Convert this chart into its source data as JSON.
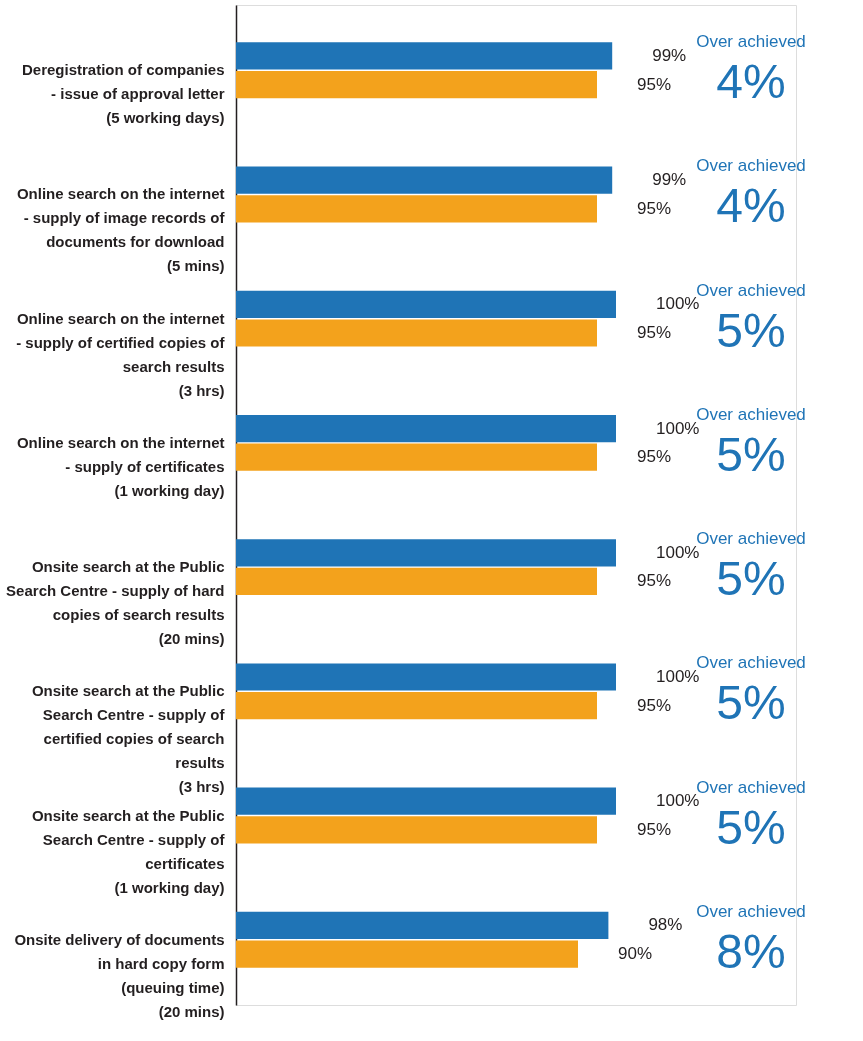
{
  "chart_data": {
    "type": "bar",
    "orientation": "horizontal",
    "categories": [
      "Deregistration of companies\n- issue of approval letter\n(5 working days)",
      "Online search on the internet\n- supply of image records of\n  documents for download\n(5 mins)",
      "Online search on the internet\n- supply of certified copies of\n  search results\n(3 hrs)",
      "Online search on the internet\n- supply of certificates\n(1 working day)",
      "Onsite search at the Public\nSearch Centre - supply of hard\ncopies of search results\n(20 mins)",
      "Onsite search at the Public\nSearch Centre - supply of\ncertified copies of search\nresults\n(3 hrs)",
      "Onsite search at the Public\nSearch Centre - supply of\ncertificates\n(1 working day)",
      "Onsite delivery of documents\nin hard copy form\n(queuing time)\n(20 mins)"
    ],
    "series": [
      {
        "color": "#1f74b6",
        "values": [
          99,
          99,
          100,
          100,
          100,
          100,
          100,
          98
        ],
        "value_labels": [
          "99%",
          "99%",
          "100%",
          "100%",
          "100%",
          "100%",
          "100%",
          "98%"
        ]
      },
      {
        "color": "#f3a21c",
        "values": [
          95,
          95,
          95,
          95,
          95,
          95,
          95,
          90
        ],
        "value_labels": [
          "95%",
          "95%",
          "95%",
          "95%",
          "95%",
          "95%",
          "95%",
          "90%"
        ]
      }
    ],
    "annotations": [
      "Over achieved",
      "4%",
      "Over achieved",
      "4%",
      "Over achieved",
      "5%",
      "Over achieved",
      "5%",
      "Over achieved",
      "5%",
      "Over achieved",
      "5%",
      "Over achieved",
      "5%",
      "Over achieved",
      "8%"
    ]
  }
}
